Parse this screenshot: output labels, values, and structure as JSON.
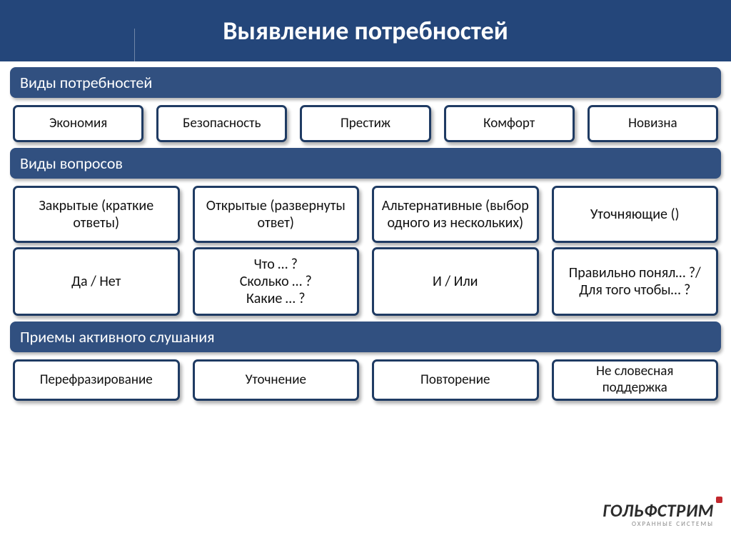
{
  "title": "Выявление потребностей",
  "colors": {
    "header_band": "#24467a",
    "section_header": "#315080",
    "card_border": "#1f3b63",
    "card_bg": "#ffffff",
    "text_light": "#ffffff",
    "text_dark": "#111111",
    "shadow": "rgba(0,0,0,0.30)",
    "logo_dot": "#c1272d"
  },
  "sections": {
    "needs": {
      "header": "Виды потребностей",
      "items": [
        "Экономия",
        "Безопасность",
        "Престиж",
        "Комфорт",
        "Новизна"
      ]
    },
    "questions": {
      "header": "Виды вопросов",
      "cols": [
        {
          "head": "Закрытые (краткие ответы)",
          "sub": "Да / Нет"
        },
        {
          "head": "Открытые (развернуты ответ)",
          "sub": "Что … ?\nСколько … ?\nКакие … ?"
        },
        {
          "head": "Альтернативные (выбор одного из нескольких)",
          "sub": "И / Или"
        },
        {
          "head": "Уточняющие ()",
          "sub": "Правильно понял… ?/\nДля того чтобы… ?"
        }
      ]
    },
    "listening": {
      "header": "Приемы активного слушания",
      "items": [
        "Перефразирование",
        "Уточнение",
        "Повторение",
        "Не словесная\nподдержка"
      ]
    }
  },
  "footer": {
    "brand": "ГОЛЬФСТРИМ",
    "sub": "ОХРАННЫЕ СИСТЕМЫ"
  }
}
